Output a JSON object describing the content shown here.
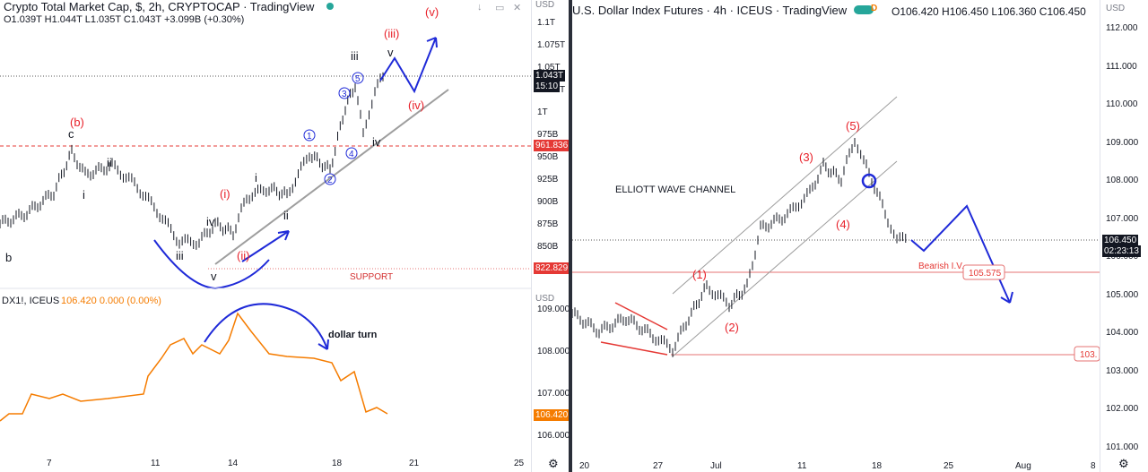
{
  "left_chart": {
    "title": "Crypto Total Market Cap, $, 2h, CRYPTOCAP · TradingView",
    "ohlc": "O1.039T H1.044T L1.035T C1.043T +3.099B (+0.30%)",
    "axis_currency": "USD",
    "price_ticks": [
      "1.1T",
      "1.075T",
      "1.05T",
      "1.025T",
      "1T",
      "975B",
      "950B",
      "925B",
      "900B",
      "875B",
      "850B"
    ],
    "current_price": "1.043T",
    "countdown": "15:10",
    "level_1": "961.836",
    "level_2": "822.829",
    "support_label": "SUPPORT",
    "x_ticks": [
      "7",
      "11",
      "14",
      "18",
      "21",
      "25"
    ],
    "wave_labels": {
      "b_paren": "(b)",
      "c": "c",
      "i_small": "i",
      "b": "b",
      "ii_small": "ii",
      "iii_small": "iii",
      "iv_small": "iv",
      "v_small": "v",
      "iii_low": "iii",
      "i_paren": "(i)",
      "ii_paren": "(ii)",
      "iii_paren": "(iii)",
      "iv_paren": "(iv)",
      "v_paren": "(v)",
      "iii_top": "iii",
      "v_top": "v",
      "iv_top": "iv",
      "i_mid": "i",
      "ii_mid": "ii",
      "c1": "1",
      "c2": "2",
      "c3": "3",
      "c4": "4",
      "c5": "5"
    }
  },
  "dxy_inset": {
    "symbol": "DX1!, ICEUS",
    "values": "106.420 0.000 (0.00%)",
    "axis_currency": "USD",
    "ticks": [
      "109.000",
      "108.000",
      "107.000",
      "106.000"
    ],
    "current": "106.420",
    "annotation": "dollar turn"
  },
  "right_chart": {
    "title": "U.S. Dollar Index Futures · 4h · ICEUS · TradingView",
    "ohlc": "O106.420 H106.450 L106.360 C106.450",
    "axis_currency": "USD",
    "price_ticks": [
      "112.000",
      "111.000",
      "110.000",
      "109.000",
      "108.000",
      "107.000",
      "106.000",
      "105.000",
      "104.000",
      "103.000",
      "102.000",
      "101.000"
    ],
    "current_price": "106.450",
    "countdown": "02:23:13",
    "level_1": "105.575",
    "level_2": "103.",
    "channel_label": "ELLIOTT WAVE CHANNEL",
    "bearish_label": "Bearish I.V.",
    "x_ticks": [
      "20",
      "27",
      "Jul",
      "11",
      "18",
      "25",
      "Aug",
      "8"
    ],
    "wave_labels": {
      "w1": "(1)",
      "w2": "(2)",
      "w3": "(3)",
      "w4": "(4)",
      "w5": "(5)"
    }
  },
  "colors": {
    "wave_red": "#e8212a",
    "path_blue": "#1f2ad8",
    "dxy_orange": "#f57c00",
    "level_red": "#e53935",
    "support_red": "#d32f2f"
  }
}
